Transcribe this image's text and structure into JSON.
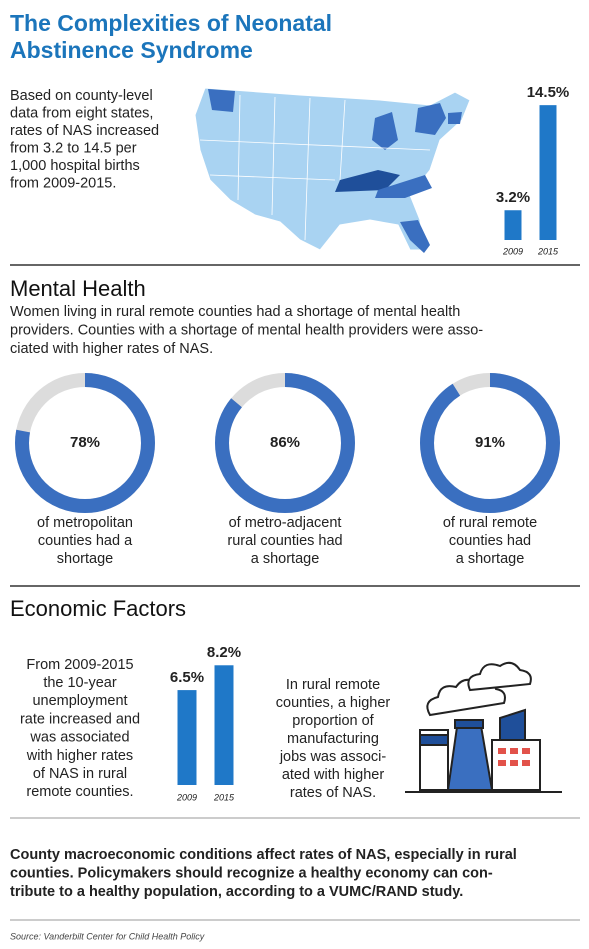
{
  "title": [
    "The Complexities of Neonatal",
    "Abstinence Syndrome"
  ],
  "intro": [
    "Based on county-level",
    "data from eight states,",
    "rates of NAS increased",
    "from 3.2 to 14.5 per",
    "1,000 hospital births",
    "from 2009-2015."
  ],
  "mental_health": {
    "heading": "Mental Health",
    "text": [
      "Women living in rural remote counties had a shortage of mental health",
      "providers. Counties with a shortage of mental health providers were asso-",
      "ciated with higher rates of NAS."
    ]
  },
  "economic": {
    "heading": "Economic Factors",
    "left_text": [
      "From 2009-2015",
      "the 10-year",
      "unemployment",
      "rate increased and",
      "was associated",
      "with higher rates",
      "of NAS in rural",
      "remote counties."
    ],
    "right_text": [
      "In rural remote",
      "counties, a higher",
      "proportion of",
      "manufacturing",
      "jobs was associ-",
      "ated with higher",
      "rates of NAS."
    ]
  },
  "conclusion": [
    "County macroeconomic conditions affect rates of NAS, especially in rural",
    "counties. Policymakers should recognize a healthy economy can con-",
    "tribute to a healthy population, according to a VUMC/RAND study."
  ],
  "source": "Source: Vanderbilt Center for Child Health Policy",
  "chart_data": [
    {
      "type": "bar",
      "categories": [
        "2009",
        "2015"
      ],
      "values": [
        3.2,
        14.5
      ],
      "value_labels": [
        "3.2%",
        "14.5%"
      ],
      "color": "#1f78c8"
    },
    {
      "type": "pie",
      "values": [
        78
      ],
      "value_labels": [
        "78%"
      ],
      "color": "#3a6fc0",
      "caption": [
        "of metropolitan",
        "counties had a",
        "shortage"
      ]
    },
    {
      "type": "pie",
      "values": [
        86
      ],
      "value_labels": [
        "86%"
      ],
      "color": "#3a6fc0",
      "caption": [
        "of metro-adjacent",
        "rural counties had",
        "a shortage"
      ]
    },
    {
      "type": "pie",
      "values": [
        91
      ],
      "value_labels": [
        "91%"
      ],
      "color": "#3a6fc0",
      "caption": [
        "of rural remote",
        "counties had",
        "a shortage"
      ]
    },
    {
      "type": "bar",
      "categories": [
        "2009",
        "2015"
      ],
      "values": [
        6.5,
        8.2
      ],
      "value_labels": [
        "6.5%",
        "8.2%"
      ],
      "color": "#1f78c8"
    }
  ]
}
